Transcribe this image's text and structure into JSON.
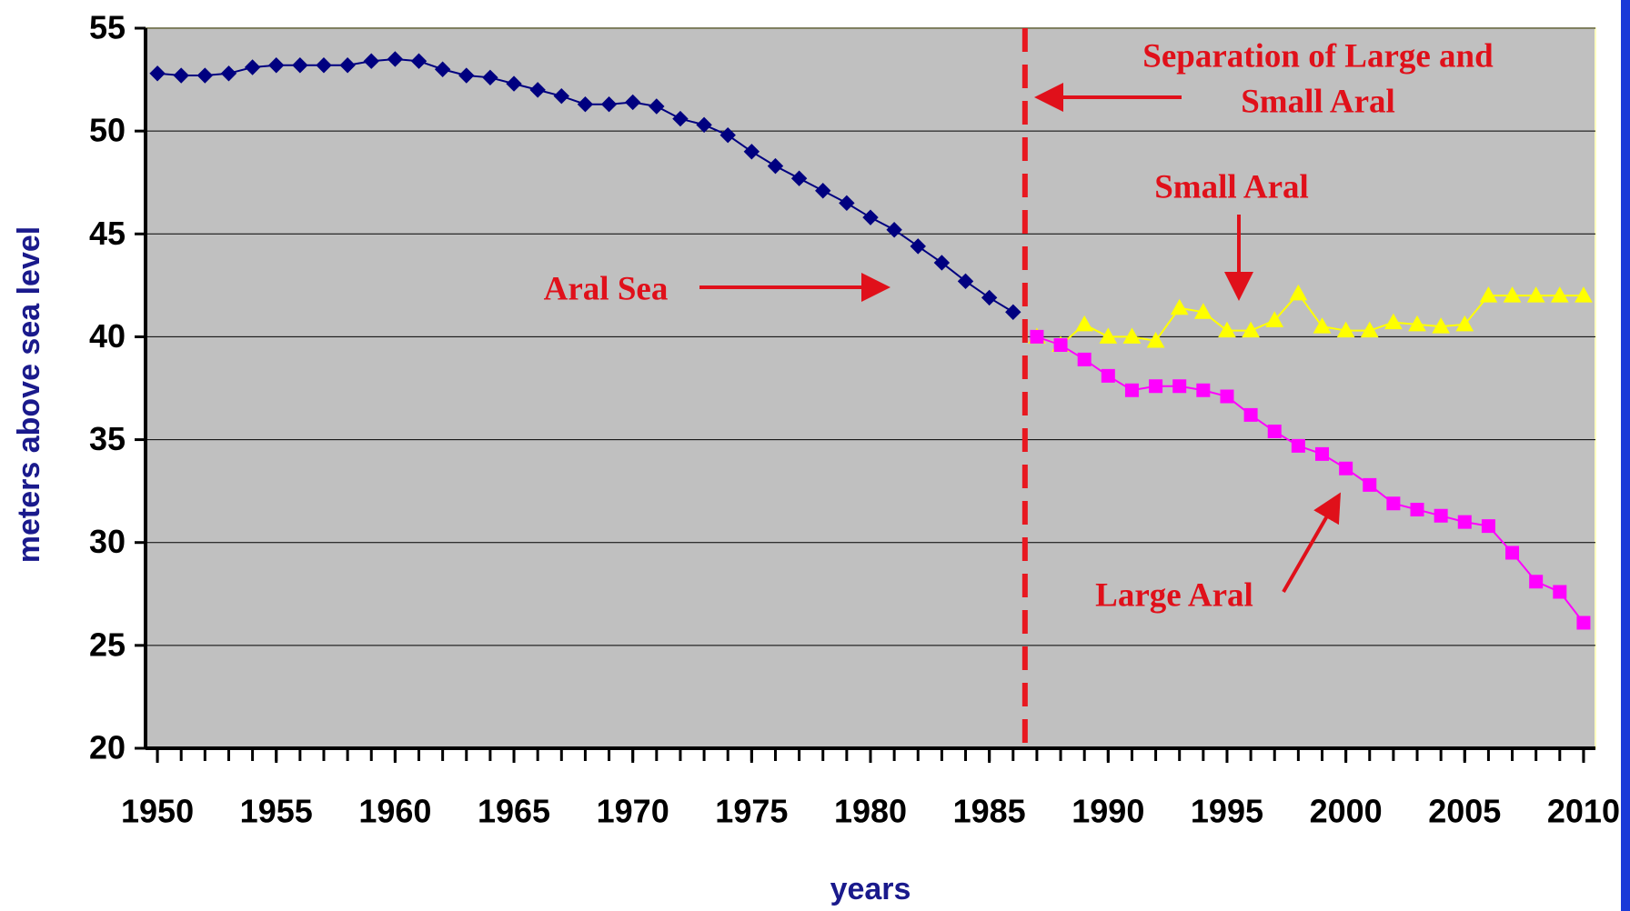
{
  "chart_data": {
    "type": "line",
    "axis_labels": {
      "y": "meters above sea level",
      "x": "years"
    },
    "xlim": [
      1949.5,
      2010.5
    ],
    "xticks": [
      1950,
      1955,
      1960,
      1965,
      1970,
      1975,
      1980,
      1985,
      1990,
      1995,
      2000,
      2005,
      2010
    ],
    "ylim": [
      20,
      55
    ],
    "yticks": [
      20,
      25,
      30,
      35,
      40,
      45,
      50,
      55
    ],
    "grid": true,
    "separation_x": 1986.5,
    "annotations": {
      "separation": [
        "Separation of Large and",
        "Small Aral"
      ],
      "small": "Small Aral",
      "aral": "Aral Sea",
      "large": "Large Aral"
    },
    "series": [
      {
        "name": "Aral Sea",
        "color": "#000080",
        "marker": "diamond",
        "x": [
          1950,
          1951,
          1952,
          1953,
          1954,
          1955,
          1956,
          1957,
          1958,
          1959,
          1960,
          1961,
          1962,
          1963,
          1964,
          1965,
          1966,
          1967,
          1968,
          1969,
          1970,
          1971,
          1972,
          1973,
          1974,
          1975,
          1976,
          1977,
          1978,
          1979,
          1980,
          1981,
          1982,
          1983,
          1984,
          1985,
          1986
        ],
        "values": [
          52.8,
          52.7,
          52.7,
          52.8,
          53.1,
          53.2,
          53.2,
          53.2,
          53.2,
          53.4,
          53.5,
          53.4,
          53.0,
          52.7,
          52.6,
          52.3,
          52.0,
          51.7,
          51.3,
          51.3,
          51.4,
          51.2,
          50.6,
          50.3,
          49.8,
          49.0,
          48.3,
          47.7,
          47.1,
          46.5,
          45.8,
          45.2,
          44.4,
          43.6,
          42.7,
          41.9,
          41.2
        ]
      },
      {
        "name": "Small Aral",
        "color": "#ffff00",
        "marker": "triangle",
        "x": [
          1987,
          1988,
          1989,
          1990,
          1991,
          1992,
          1993,
          1994,
          1995,
          1996,
          1997,
          1998,
          1999,
          2000,
          2001,
          2002,
          2003,
          2004,
          2005,
          2006,
          2007,
          2008,
          2009,
          2010
        ],
        "values": [
          40.0,
          39.6,
          40.6,
          40.0,
          40.0,
          39.8,
          41.4,
          41.2,
          40.3,
          40.3,
          40.8,
          42.1,
          40.5,
          40.3,
          40.3,
          40.7,
          40.6,
          40.5,
          40.6,
          42.0,
          42.0,
          42.0,
          42.0,
          42.0
        ]
      },
      {
        "name": "Large Aral",
        "color": "#ff00ff",
        "marker": "square",
        "x": [
          1987,
          1988,
          1989,
          1990,
          1991,
          1992,
          1993,
          1994,
          1995,
          1996,
          1997,
          1998,
          1999,
          2000,
          2001,
          2002,
          2003,
          2004,
          2005,
          2006,
          2007,
          2008,
          2009,
          2010
        ],
        "values": [
          40.0,
          39.6,
          38.9,
          38.1,
          37.4,
          37.6,
          37.6,
          37.4,
          37.1,
          36.2,
          35.4,
          34.7,
          34.3,
          33.6,
          32.8,
          31.9,
          31.6,
          31.3,
          31.0,
          30.8,
          29.5,
          28.1,
          27.6,
          26.1
        ]
      }
    ]
  }
}
